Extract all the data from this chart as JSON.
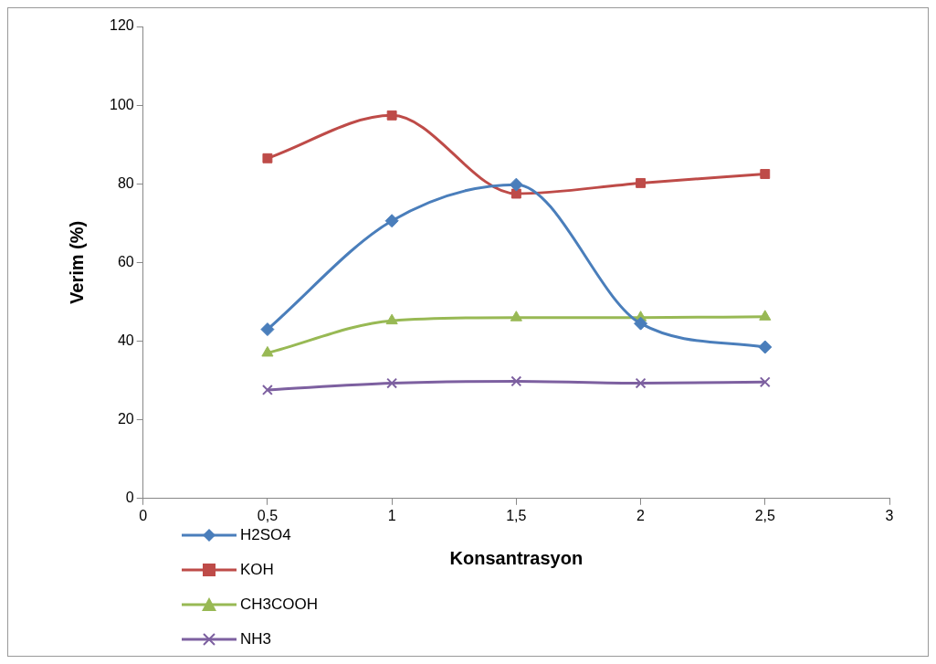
{
  "chart_data": {
    "type": "line",
    "xlabel": "Konsantrasyon",
    "ylabel": "Verim (%)",
    "x": [
      0.5,
      1,
      1.5,
      2,
      2.5
    ],
    "series": [
      {
        "name": "H2SO4",
        "color": "#4a7ebb",
        "marker": "diamond",
        "values": [
          43,
          70.6,
          79.8,
          44.5,
          38.5
        ]
      },
      {
        "name": "KOH",
        "color": "#be4b48",
        "marker": "square",
        "values": [
          86.5,
          97.4,
          77.5,
          80.2,
          82.5
        ]
      },
      {
        "name": "CH3COOH",
        "color": "#98b954",
        "marker": "triangle",
        "values": [
          37,
          45.2,
          46,
          46,
          46.2
        ]
      },
      {
        "name": "NH3",
        "color": "#7d60a0",
        "marker": "cross",
        "values": [
          27.6,
          29.3,
          29.8,
          29.3,
          29.6
        ]
      }
    ],
    "xlim": [
      0,
      3
    ],
    "xticks": [
      0,
      {
        "value": 0.5,
        "label": "0,5"
      },
      1,
      {
        "value": 1.5,
        "label": "1,5"
      },
      2,
      {
        "value": 2.5,
        "label": "2,5"
      },
      3
    ],
    "ylim": [
      0,
      120
    ],
    "yticks": [
      0,
      20,
      40,
      60,
      80,
      100,
      120
    ],
    "grid": false,
    "legend": "bottom left",
    "line_style": "solid"
  }
}
